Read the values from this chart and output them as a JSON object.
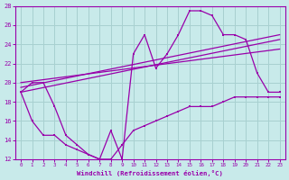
{
  "xlabel": "Windchill (Refroidissement éolien,°C)",
  "background_color": "#c8eaea",
  "grid_color": "#a8d0d0",
  "line_color": "#9900aa",
  "xlim": [
    -0.5,
    23.5
  ],
  "ylim": [
    12,
    28
  ],
  "xticks": [
    0,
    1,
    2,
    3,
    4,
    5,
    6,
    7,
    8,
    9,
    10,
    11,
    12,
    13,
    14,
    15,
    16,
    17,
    18,
    19,
    20,
    21,
    22,
    23
  ],
  "yticks": [
    12,
    14,
    16,
    18,
    20,
    22,
    24,
    26,
    28
  ],
  "c1x": [
    0,
    1,
    2,
    3,
    4,
    5,
    6,
    7,
    8,
    9,
    10,
    11,
    12,
    13,
    14,
    15,
    16,
    17,
    18,
    19,
    20,
    21,
    22,
    23
  ],
  "c1y": [
    19.0,
    20.0,
    20.0,
    17.5,
    14.5,
    13.5,
    12.5,
    12.0,
    15.0,
    12.0,
    23.0,
    25.0,
    21.5,
    23.0,
    25.0,
    27.5,
    27.5,
    27.0,
    25.0,
    25.0,
    24.5,
    21.0,
    19.0,
    19.0
  ],
  "c2x": [
    0,
    10,
    18,
    23
  ],
  "c2y": [
    19.5,
    21.0,
    24.5,
    25.0
  ],
  "c3x": [
    0,
    10,
    18,
    23
  ],
  "c3y": [
    19.0,
    20.5,
    23.5,
    24.5
  ],
  "c4x": [
    0,
    1,
    2,
    3,
    4,
    5,
    6,
    7,
    8,
    9,
    10,
    11,
    12,
    13,
    14,
    15,
    16,
    17,
    18,
    19,
    20,
    21,
    22,
    23
  ],
  "c4y": [
    19.0,
    16.0,
    14.5,
    14.5,
    13.5,
    13.0,
    12.5,
    12.0,
    12.0,
    13.5,
    15.0,
    15.5,
    16.0,
    16.5,
    17.0,
    17.5,
    17.5,
    17.5,
    18.0,
    18.5,
    18.5,
    18.5,
    18.5,
    18.5
  ]
}
